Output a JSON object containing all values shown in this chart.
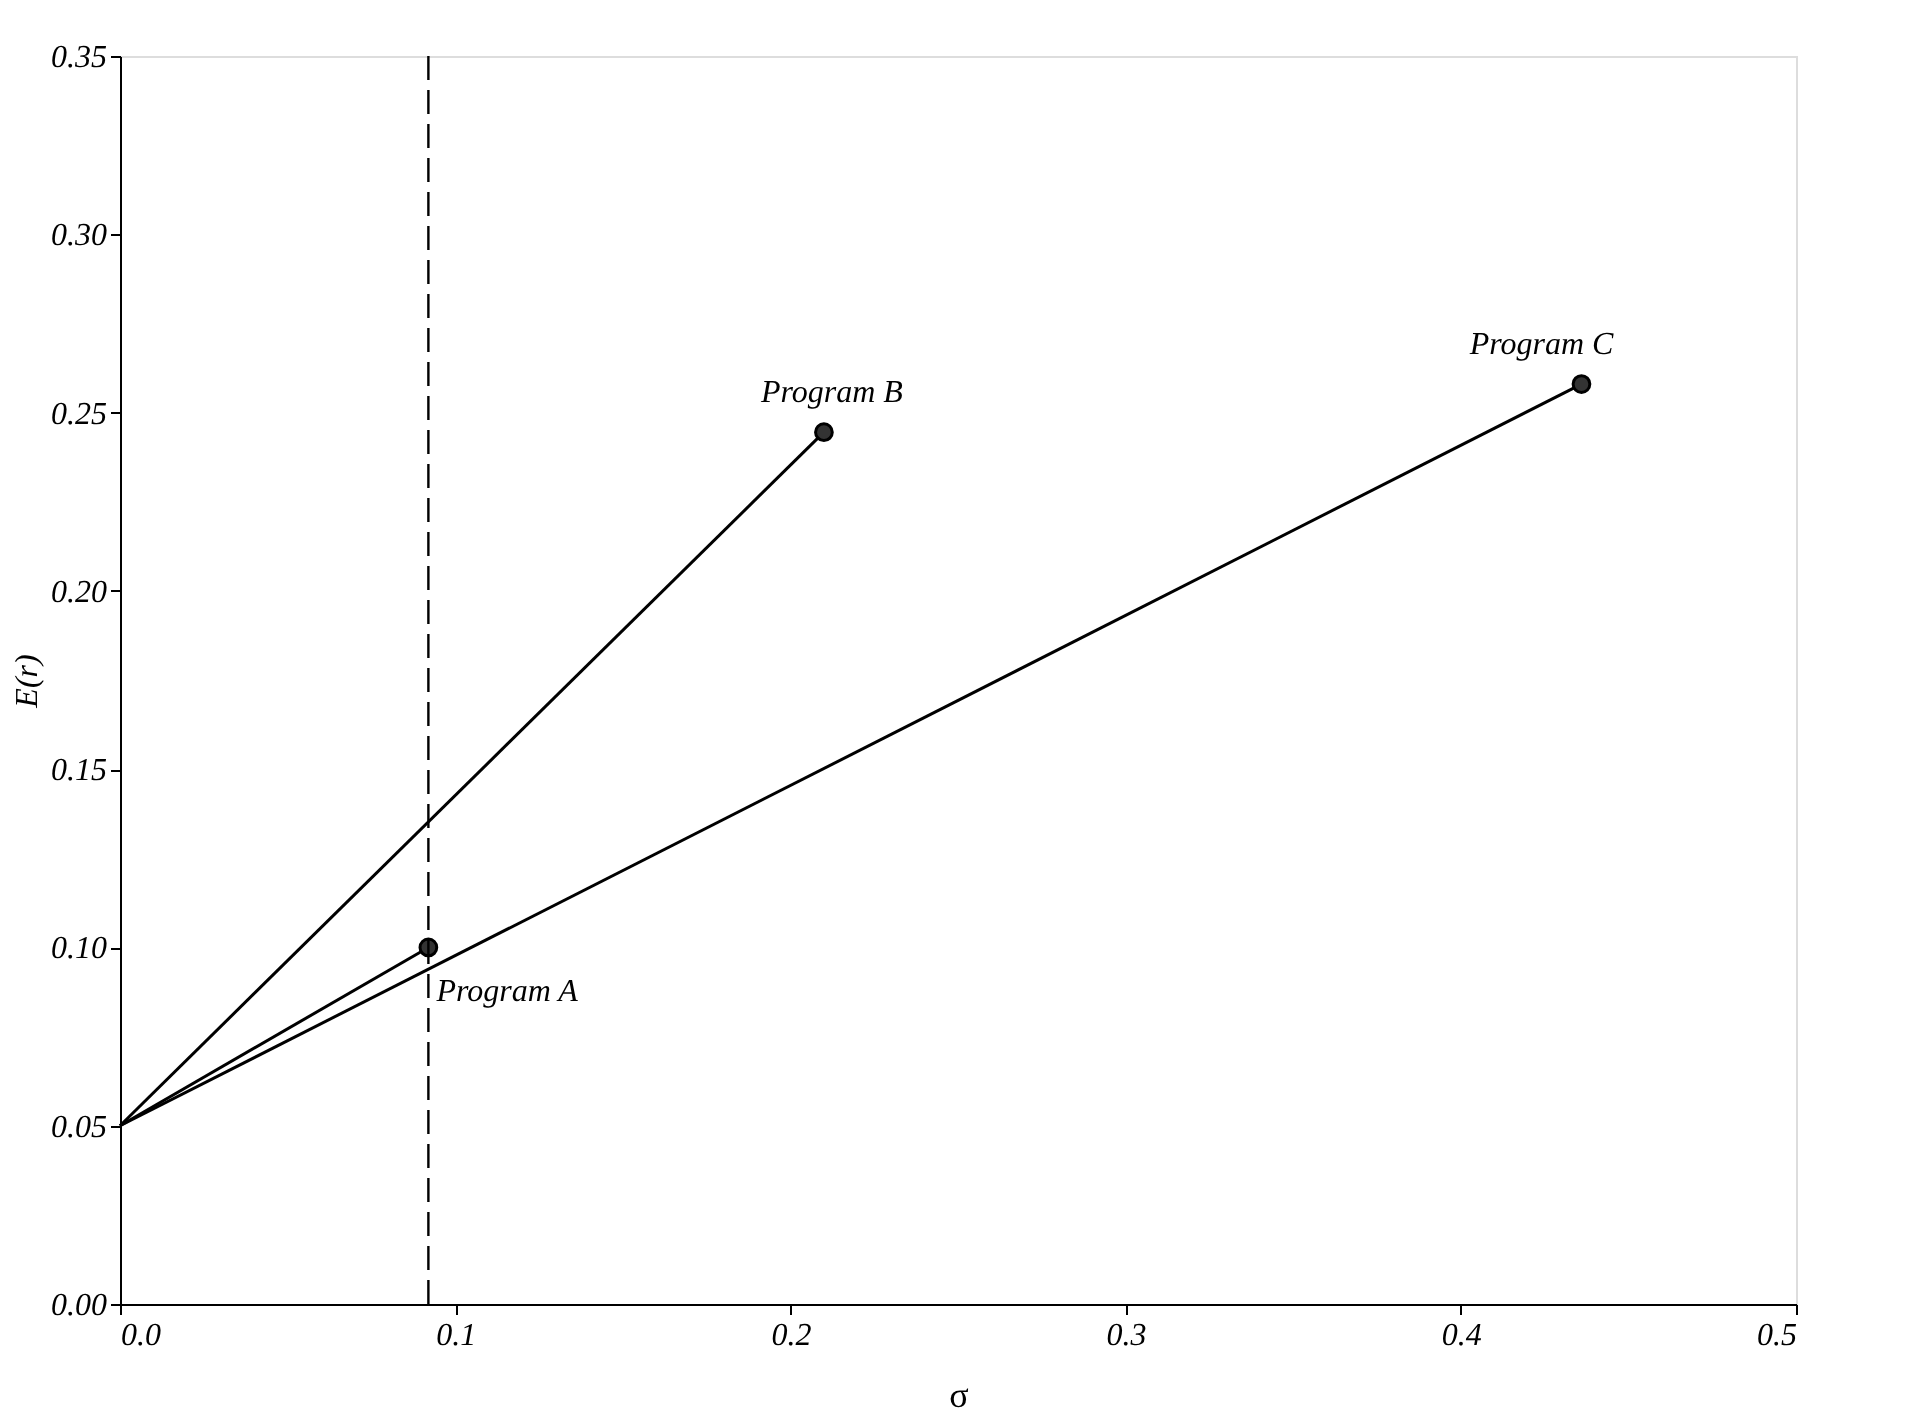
{
  "chart_data": {
    "type": "line",
    "xlabel": "σ",
    "ylabel": "E(r)",
    "xlim": [
      0,
      0.5
    ],
    "xticks": [
      {
        "value": 0,
        "label": "0.0"
      },
      0.1,
      0.2,
      0.3,
      0.4,
      0.5
    ],
    "ylim": [
      0,
      0.35
    ],
    "yticks": [
      {
        "value": 0,
        "label": "0.00"
      },
      {
        "value": 0.05,
        "label": "0.05"
      },
      {
        "value": 0.1,
        "label": "0.10"
      },
      0.15,
      {
        "value": 0.2,
        "label": "0.20"
      },
      0.25,
      {
        "value": 0.3,
        "label": "0.30"
      },
      0.35
    ],
    "grid": false,
    "series": [
      {
        "color": "#000000",
        "x": [
          0,
          0.092
        ],
        "values": [
          0.05,
          0.1
        ],
        "marker": "none",
        "line_style": "solid"
      },
      {
        "color": "#000000",
        "x": [
          0,
          0.21
        ],
        "values": [
          0.05,
          0.2445
        ],
        "marker": "none",
        "line_style": "solid"
      },
      {
        "color": "#000000",
        "x": [
          0,
          0.436
        ],
        "values": [
          0.05,
          0.258
        ],
        "marker": "none",
        "line_style": "solid"
      },
      {
        "type": "scatter",
        "color": "#333333",
        "x": [
          0.092,
          0.21,
          0.436
        ],
        "values": [
          0.1,
          0.2445,
          0.258
        ],
        "marker": "circle"
      }
    ],
    "ref_lines": [
      {
        "axis": "x",
        "value": 0.092,
        "color": "#000000",
        "line_style": "dashed"
      }
    ],
    "annotations": [
      {
        "text": "Program A",
        "x": 0.092,
        "y": 0.1
      },
      {
        "text": "Program B",
        "x": 0.21,
        "y": 0.2445
      },
      {
        "text": "Program C",
        "x": 0.436,
        "y": 0.258
      }
    ]
  }
}
